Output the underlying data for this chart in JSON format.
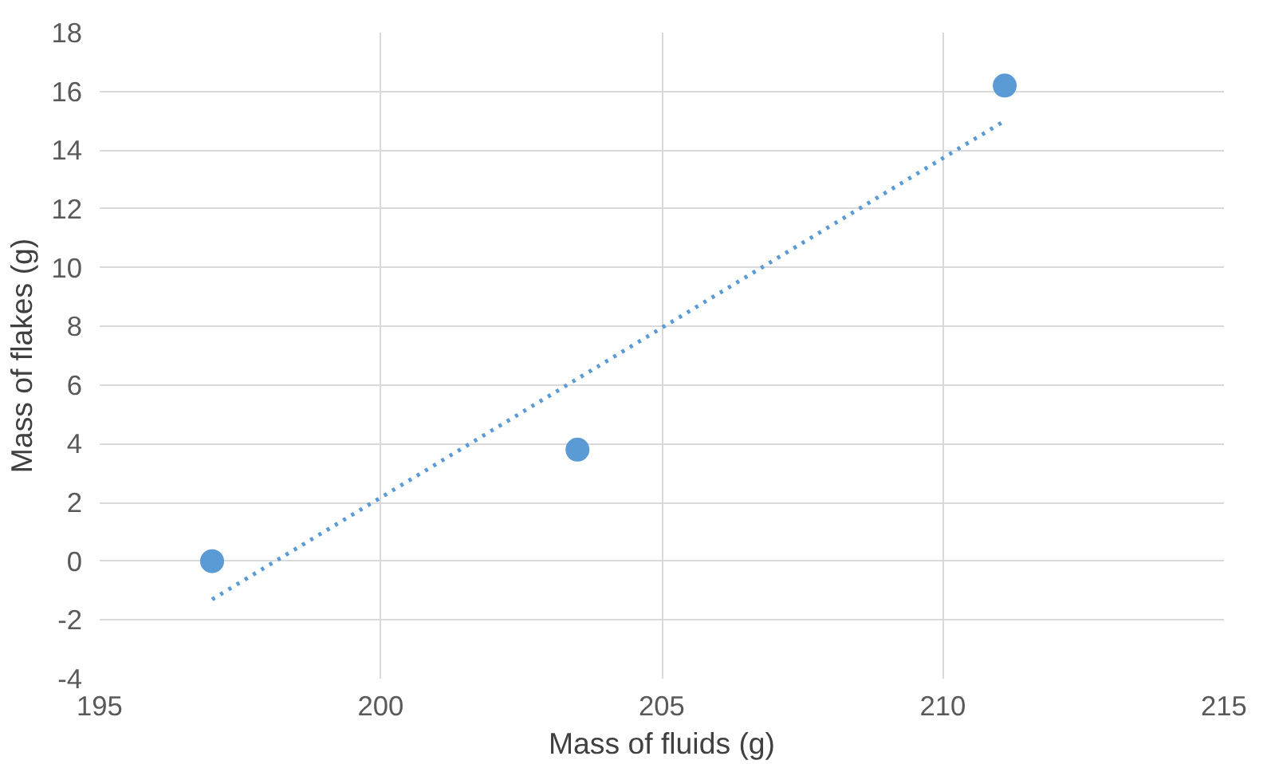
{
  "chart_data": {
    "type": "scatter",
    "xlabel": "Mass of fluids (g)",
    "ylabel": "Mass of flakes (g)",
    "xlim": [
      195,
      215
    ],
    "xticks": [
      195,
      200,
      205,
      210,
      215
    ],
    "ylim": [
      -4,
      18
    ],
    "yticks": [
      -4,
      -2,
      0,
      2,
      4,
      6,
      8,
      10,
      12,
      14,
      16,
      18
    ],
    "grid": true,
    "series": [
      {
        "color": "#5b9bd5",
        "marker": "circle",
        "x": [
          197,
          203.5,
          211.1
        ],
        "values": [
          0,
          3.8,
          16.2
        ]
      },
      {
        "type": "line",
        "color": "#5b9bd5",
        "line_style": "dotted",
        "x": [
          197,
          211.1
        ],
        "values": [
          -1.3,
          15.0
        ]
      }
    ]
  }
}
